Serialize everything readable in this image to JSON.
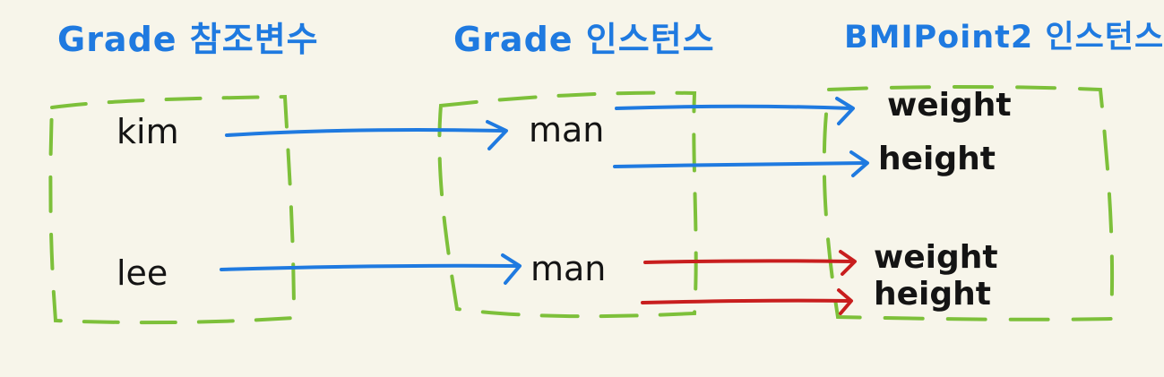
{
  "headers": {
    "reference_vars": "Grade 참조변수",
    "grade_instances": "Grade 인스턴스",
    "bmi_instances": "BMIPoint2 인스턴스"
  },
  "reference_vars": [
    "kim",
    "lee"
  ],
  "grade_fields": [
    "man",
    "man"
  ],
  "bmi_fields": {
    "kim": [
      "weight",
      "height"
    ],
    "lee": [
      "weight",
      "height"
    ]
  },
  "colors": {
    "header_text": "#1f7ae0",
    "box_outline": "#7dc03a",
    "arrow_kim": "#1f7ae0",
    "arrow_lee_ref": "#1f7ae0",
    "arrow_lee_fields": "#c81e1e",
    "label_text": "#141414",
    "background": "#f7f5ea"
  }
}
